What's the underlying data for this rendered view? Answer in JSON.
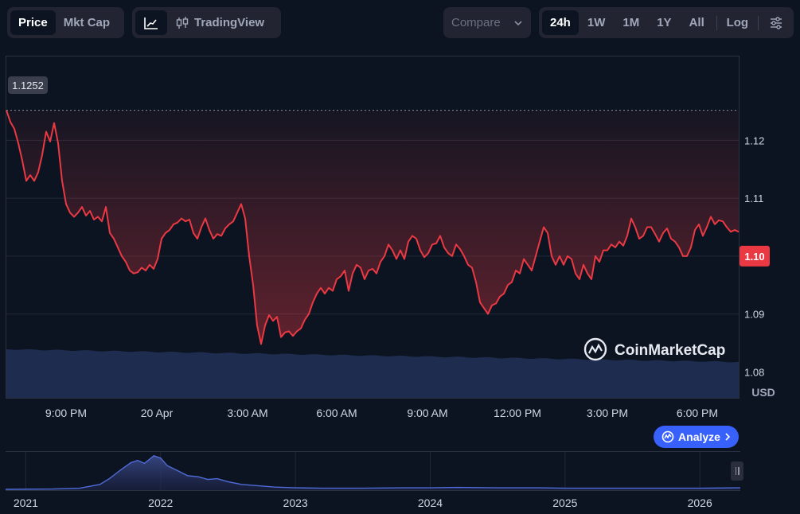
{
  "toolbar": {
    "price_label": "Price",
    "mktcap_label": "Mkt Cap",
    "tradingview_label": "TradingView",
    "compare_label": "Compare",
    "ranges": [
      "24h",
      "1W",
      "1M",
      "1Y",
      "All"
    ],
    "log_label": "Log"
  },
  "watermark": "CoinMarketCap",
  "analyze_label": "Analyze",
  "chart_data": {
    "type": "line",
    "currency": "USD",
    "current_price": "1.10",
    "high_marker": "1.1252",
    "ylim": [
      1.0755,
      1.1345
    ],
    "y_ticks": [
      "1.12",
      "1.11",
      "1.10",
      "1.09",
      "1.08"
    ],
    "x_ticks": [
      "9:00 PM",
      "20 Apr",
      "3:00 AM",
      "6:00 AM",
      "9:00 AM",
      "12:00 PM",
      "3:00 PM",
      "6:00 PM"
    ],
    "line_color": "#ea3943",
    "series": [
      {
        "values": [
          1.1252,
          1.1232,
          1.122,
          1.1195,
          1.1165,
          1.113,
          1.114,
          1.113,
          1.1145,
          1.1175,
          1.1215,
          1.1198,
          1.123,
          1.1195,
          1.113,
          1.109,
          1.1075,
          1.1068,
          1.1075,
          1.1085,
          1.107,
          1.1078,
          1.1063,
          1.1068,
          1.106,
          1.1085,
          1.104,
          1.103,
          1.1015,
          1.1,
          1.099,
          1.0975,
          1.097,
          1.0972,
          1.098,
          1.0975,
          1.0985,
          1.0978,
          1.0995,
          1.103,
          1.104,
          1.1045,
          1.1055,
          1.1058,
          1.1065,
          1.106,
          1.1063,
          1.104,
          1.103,
          1.105,
          1.1065,
          1.1045,
          1.103,
          1.1038,
          1.1035,
          1.1048,
          1.1055,
          1.106,
          1.1075,
          1.109,
          1.1065,
          1.1,
          1.095,
          1.088,
          1.0848,
          1.088,
          1.0898,
          1.0888,
          1.0895,
          1.086,
          1.0868,
          1.087,
          1.0862,
          1.087,
          1.0875,
          1.089,
          1.09,
          1.092,
          1.0935,
          1.0945,
          1.0935,
          1.0945,
          1.094,
          1.096,
          1.0965,
          1.0975,
          1.094,
          1.097,
          1.0985,
          1.098,
          1.096,
          1.0975,
          1.0978,
          1.097,
          1.099,
          1.1,
          1.102,
          1.101,
          1.0995,
          1.101,
          1.0995,
          1.1025,
          1.1035,
          1.103,
          1.101,
          1.0998,
          1.1005,
          1.102,
          1.1022,
          1.1035,
          1.1015,
          1.1005,
          1.1,
          1.102,
          1.1012,
          1.1,
          1.0985,
          1.098,
          1.0955,
          1.092,
          1.091,
          1.09,
          1.0915,
          1.0918,
          1.093,
          1.0935,
          1.095,
          1.0955,
          1.0975,
          1.097,
          1.0995,
          1.0985,
          1.0975,
          1.1,
          1.1025,
          1.105,
          1.104,
          1.1,
          1.0985,
          1.1,
          1.0985,
          1.1,
          1.0995,
          1.097,
          1.096,
          1.0985,
          1.097,
          1.096,
          1.1,
          1.099,
          1.101,
          1.101,
          1.102,
          1.1015,
          1.1025,
          1.1018,
          1.1035,
          1.1065,
          1.105,
          1.103,
          1.1035,
          1.105,
          1.105,
          1.1038,
          1.1025,
          1.104,
          1.1048,
          1.103,
          1.1025,
          1.1015,
          1.1,
          1.1,
          1.1015,
          1.1045,
          1.1055,
          1.1035,
          1.105,
          1.1068,
          1.1055,
          1.1062,
          1.106,
          1.105,
          1.1042,
          1.1045,
          1.1042
        ]
      }
    ],
    "overview": {
      "x_ticks": [
        "2021",
        "2022",
        "2023",
        "2024",
        "2025",
        "2026"
      ],
      "x_start": 2020.85,
      "x_end": 2026.3,
      "points": [
        [
          2020.85,
          0.02
        ],
        [
          2021.2,
          0.03
        ],
        [
          2021.4,
          0.05
        ],
        [
          2021.55,
          0.15
        ],
        [
          2021.62,
          0.3
        ],
        [
          2021.7,
          0.52
        ],
        [
          2021.78,
          0.72
        ],
        [
          2021.83,
          0.78
        ],
        [
          2021.88,
          0.7
        ],
        [
          2021.95,
          0.9
        ],
        [
          2022.0,
          0.84
        ],
        [
          2022.05,
          0.64
        ],
        [
          2022.12,
          0.52
        ],
        [
          2022.2,
          0.38
        ],
        [
          2022.28,
          0.35
        ],
        [
          2022.35,
          0.28
        ],
        [
          2022.42,
          0.3
        ],
        [
          2022.5,
          0.22
        ],
        [
          2022.6,
          0.15
        ],
        [
          2022.7,
          0.12
        ],
        [
          2022.85,
          0.08
        ],
        [
          2023.0,
          0.06
        ],
        [
          2023.2,
          0.05
        ],
        [
          2023.5,
          0.05
        ],
        [
          2023.8,
          0.06
        ],
        [
          2024.0,
          0.06
        ],
        [
          2024.2,
          0.07
        ],
        [
          2024.5,
          0.06
        ],
        [
          2024.8,
          0.06
        ],
        [
          2025.0,
          0.05
        ],
        [
          2025.5,
          0.05
        ],
        [
          2026.0,
          0.05
        ],
        [
          2026.3,
          0.06
        ]
      ]
    }
  }
}
